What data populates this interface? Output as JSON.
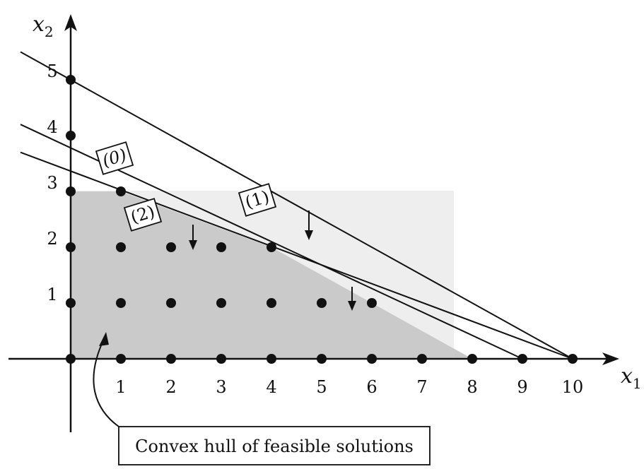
{
  "axes": {
    "x_label": "x",
    "x_subscript": "1",
    "y_label": "x",
    "y_subscript": "2",
    "x_ticks": [
      "1",
      "2",
      "3",
      "4",
      "5",
      "6",
      "7",
      "8",
      "9",
      "10"
    ],
    "y_ticks": [
      "1",
      "2",
      "3",
      "4",
      "5"
    ]
  },
  "lines": [
    {
      "id": "objective",
      "label": "(0)",
      "from": [
        -1,
        4.2
      ],
      "to": [
        9,
        0
      ]
    },
    {
      "id": "constraint-1",
      "label": "(1)",
      "from": [
        -1,
        5.5
      ],
      "to": [
        10,
        0
      ]
    },
    {
      "id": "constraint-2",
      "label": "(2)",
      "from": [
        -1,
        3.7
      ],
      "to": [
        10,
        0
      ]
    }
  ],
  "hull": {
    "vertices": [
      [
        0,
        0
      ],
      [
        0,
        3
      ],
      [
        1,
        3
      ],
      [
        4,
        2
      ],
      [
        8,
        0
      ]
    ],
    "color": "#c8c8c8"
  },
  "points": [
    [
      0,
      0
    ],
    [
      1,
      0
    ],
    [
      2,
      0
    ],
    [
      3,
      0
    ],
    [
      4,
      0
    ],
    [
      5,
      0
    ],
    [
      6,
      0
    ],
    [
      7,
      0
    ],
    [
      8,
      0
    ],
    [
      9,
      0
    ],
    [
      10,
      0
    ],
    [
      0,
      1
    ],
    [
      1,
      1
    ],
    [
      2,
      1
    ],
    [
      3,
      1
    ],
    [
      4,
      1
    ],
    [
      5,
      1
    ],
    [
      6,
      1
    ],
    [
      0,
      2
    ],
    [
      1,
      2
    ],
    [
      2,
      2
    ],
    [
      3,
      2
    ],
    [
      4,
      2
    ],
    [
      0,
      3
    ],
    [
      1,
      3
    ],
    [
      0,
      4
    ],
    [
      0,
      5
    ]
  ],
  "caption": "Convex hull of feasible solutions"
}
